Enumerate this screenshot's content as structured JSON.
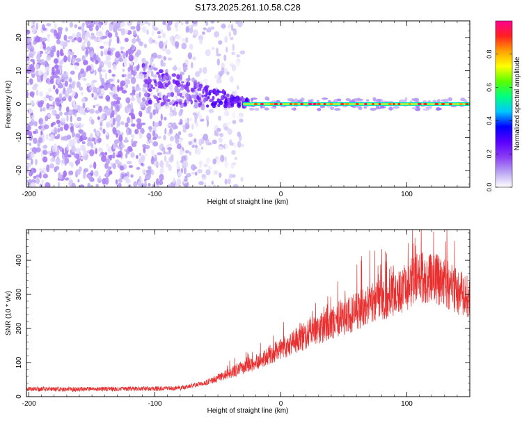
{
  "title": "S173.2025.261.10.58.C28",
  "chart_data": [
    {
      "type": "heatmap",
      "name": "spectrogram",
      "xlabel": "Height of straight line (km)",
      "ylabel": "Frequency (Hz)",
      "xlim": [
        -202,
        150
      ],
      "ylim": [
        -25,
        25
      ],
      "xticks": [
        -200,
        -100,
        0,
        100
      ],
      "xtick_labels": [
        "-200",
        "-100",
        "0",
        "100"
      ],
      "yticks": [
        -20,
        -10,
        0,
        10,
        20
      ],
      "ytick_labels": [
        "-20",
        "-10",
        "0",
        "10",
        "20"
      ],
      "colorbar": {
        "label": "Normalized spectral amplitude",
        "range": [
          0,
          1
        ],
        "ticks": [
          0.0,
          0.2,
          0.4,
          0.6,
          0.8
        ],
        "tick_labels": [
          "0.0",
          "0.2",
          "0.4",
          "0.6",
          "0.8"
        ],
        "colors": [
          "#ffffff",
          "#b9a3f3",
          "#8a3cf3",
          "#5a00ff",
          "#0000ff",
          "#00c8ff",
          "#00ff80",
          "#5aff00",
          "#ffff00",
          "#ffa000",
          "#ff2020",
          "#ff0090"
        ]
      },
      "features": {
        "noise_region_x": [
          -202,
          -30
        ],
        "transition_region_x": [
          -80,
          -30
        ],
        "stable_line_frequency_hz": 0,
        "stable_line_start_x": -30
      }
    },
    {
      "type": "line",
      "name": "snr",
      "xlabel": "Height of straight line (km)",
      "ylabel": "SNR (10 * v/v)",
      "xlim": [
        -202,
        150
      ],
      "ylim": [
        0,
        490
      ],
      "xticks": [
        -200,
        -100,
        0,
        100
      ],
      "xtick_labels": [
        "-200",
        "-100",
        "0",
        "100"
      ],
      "yticks": [
        0,
        100,
        200,
        300,
        400
      ],
      "ytick_labels": [
        "0",
        "100",
        "200",
        "300",
        "400"
      ],
      "color": "#e83030",
      "envelope": {
        "x": [
          -202,
          -150,
          -100,
          -80,
          -60,
          -40,
          -20,
          0,
          20,
          40,
          60,
          80,
          100,
          110,
          120,
          130,
          140,
          150
        ],
        "y": [
          22,
          22,
          23,
          25,
          40,
          70,
          100,
          140,
          180,
          215,
          250,
          285,
          325,
          350,
          350,
          335,
          310,
          285
        ]
      }
    }
  ]
}
